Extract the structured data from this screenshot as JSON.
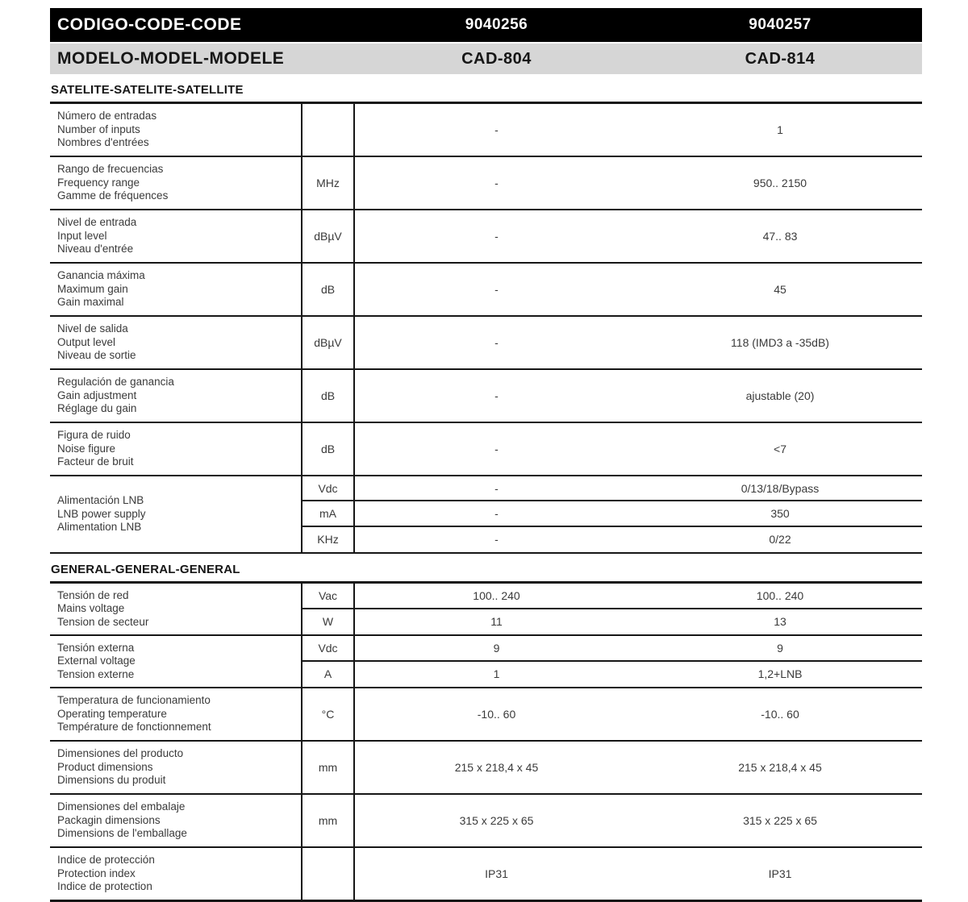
{
  "header": {
    "code_row": {
      "label": "CODIGO-CODE-CODE",
      "col1": "9040256",
      "col2": "9040257"
    },
    "model_row": {
      "label": "MODELO-MODEL-MODELE",
      "col1": "CAD-804",
      "col2": "CAD-814"
    }
  },
  "columns": {
    "model1": "CAD-804",
    "model2": "CAD-814"
  },
  "sections": [
    {
      "title": "SATELITE-SATELITE-SATELLITE",
      "rows": [
        {
          "labels": [
            "Número de entradas",
            "Number of inputs",
            "Nombres d'entrées"
          ],
          "subrows": [
            {
              "unit": "",
              "col1": "-",
              "col2": "1"
            }
          ]
        },
        {
          "labels": [
            "Rango de frecuencias",
            "Frequency range",
            "Gamme de fréquences"
          ],
          "subrows": [
            {
              "unit": "MHz",
              "col1": "-",
              "col2": "950.. 2150"
            }
          ]
        },
        {
          "labels": [
            "Nivel de entrada",
            "Input level",
            "Niveau d'entrée"
          ],
          "subrows": [
            {
              "unit": "dBµV",
              "col1": "-",
              "col2": "47.. 83"
            }
          ]
        },
        {
          "labels": [
            "Ganancia máxima",
            "Maximum gain",
            "Gain maximal"
          ],
          "subrows": [
            {
              "unit": "dB",
              "col1": "-",
              "col2": "45"
            }
          ]
        },
        {
          "labels": [
            "Nivel de salida",
            "Output level",
            "Niveau de sortie"
          ],
          "subrows": [
            {
              "unit": "dBµV",
              "col1": "-",
              "col2": "118 (IMD3 a -35dB)"
            }
          ]
        },
        {
          "labels": [
            "Regulación de ganancia",
            "Gain adjustment",
            "Réglage du gain"
          ],
          "subrows": [
            {
              "unit": "dB",
              "col1": "-",
              "col2": "ajustable (20)"
            }
          ]
        },
        {
          "labels": [
            "Figura de ruido",
            "Noise figure",
            "Facteur de bruit"
          ],
          "subrows": [
            {
              "unit": "dB",
              "col1": "-",
              "col2": "<7"
            }
          ]
        },
        {
          "labels": [
            "Alimentación LNB",
            "LNB  power supply",
            "Alimentation LNB"
          ],
          "subrows": [
            {
              "unit": "Vdc",
              "col1": "-",
              "col2": "0/13/18/Bypass"
            },
            {
              "unit": "mA",
              "col1": "-",
              "col2": "350"
            },
            {
              "unit": "KHz",
              "col1": "-",
              "col2": "0/22"
            }
          ]
        }
      ]
    },
    {
      "title": "GENERAL-GENERAL-GENERAL",
      "rows": [
        {
          "labels": [
            "Tensión de red",
            "Mains voltage",
            "Tension de secteur"
          ],
          "subrows": [
            {
              "unit": "Vac",
              "col1": "100.. 240",
              "col2": "100.. 240"
            },
            {
              "unit": "W",
              "col1": "11",
              "col2": "13"
            }
          ]
        },
        {
          "labels": [
            "Tensión externa",
            "External voltage",
            "Tension externe"
          ],
          "subrows": [
            {
              "unit": "Vdc",
              "col1": "9",
              "col2": "9"
            },
            {
              "unit": "A",
              "col1": "1",
              "col2": "1,2+LNB"
            }
          ]
        },
        {
          "labels": [
            "Temperatura de funcionamiento",
            "Operating temperature",
            "Température de fonctionnement"
          ],
          "subrows": [
            {
              "unit": "°C",
              "col1": "-10.. 60",
              "col2": "-10.. 60"
            }
          ]
        },
        {
          "labels": [
            "Dimensiones del producto",
            "Product dimensions",
            "Dimensions du produit"
          ],
          "subrows": [
            {
              "unit": "mm",
              "col1": "215 x 218,4 x 45",
              "col2": "215 x 218,4 x 45"
            }
          ]
        },
        {
          "labels": [
            "Dimensiones del embalaje",
            "Packagin dimensions",
            "Dimensions de l'emballage"
          ],
          "subrows": [
            {
              "unit": "mm",
              "col1": "315 x 225 x 65",
              "col2": "315 x 225 x 65"
            }
          ]
        },
        {
          "labels": [
            "Indice de protección",
            "Protection index",
            "Indice de protection"
          ],
          "subrows": [
            {
              "unit": "",
              "col1": "IP31",
              "col2": "IP31"
            }
          ]
        }
      ]
    }
  ],
  "colors": {
    "header_bg": "#000000",
    "header_text": "#ffffff",
    "model_bg": "#d6d6d6",
    "line": "#161616",
    "body_text": "#3a3a3a"
  }
}
